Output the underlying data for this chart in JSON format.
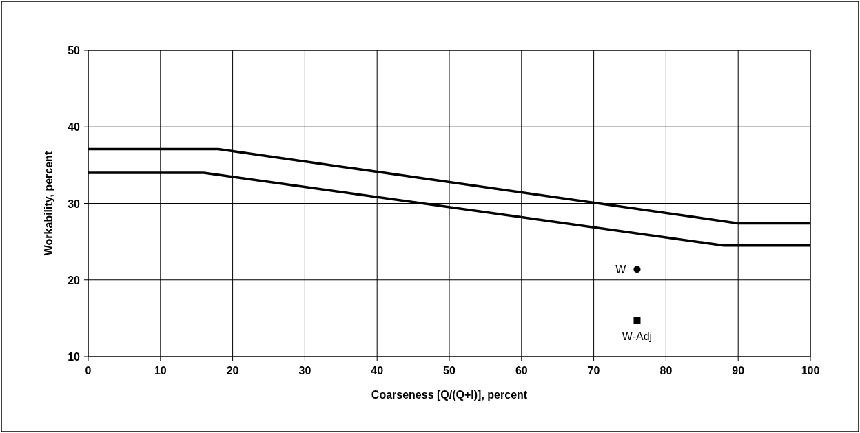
{
  "chart_data": {
    "type": "line",
    "xlabel": "Coarseness [Q/(Q+I)], percent",
    "ylabel": "Workability, percent",
    "xlim": [
      0,
      100
    ],
    "xticks": [
      0,
      10,
      20,
      30,
      40,
      50,
      60,
      70,
      80,
      90,
      100
    ],
    "ylim": [
      10,
      50
    ],
    "yticks": [
      10,
      20,
      30,
      40,
      50
    ],
    "grid": true,
    "series": [
      {
        "color": "#000000",
        "x": [
          0,
          18,
          90,
          100
        ],
        "values": [
          37.1,
          37.1,
          27.4,
          27.4
        ],
        "marker": "none"
      },
      {
        "color": "#000000",
        "x": [
          0,
          16,
          88,
          100
        ],
        "values": [
          34,
          34,
          24.5,
          24.5
        ],
        "marker": "none"
      },
      {
        "type": "scatter",
        "name": "W",
        "color": "#000000",
        "x": [
          76
        ],
        "values": [
          21.4
        ],
        "marker": "circle"
      },
      {
        "type": "scatter",
        "name": "W-Adj",
        "color": "#000000",
        "x": [
          76
        ],
        "values": [
          14.7
        ],
        "marker": "square"
      }
    ]
  }
}
